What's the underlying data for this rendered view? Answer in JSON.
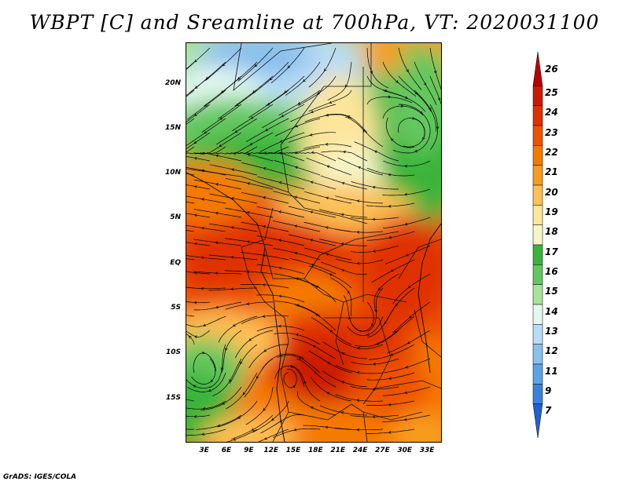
{
  "title": "WBPT [C] and Sreamline at 700hPa, VT: 2020031100",
  "footer": "GrADS: IGES/COLA",
  "map": {
    "lat_labels": [
      {
        "text": "20N",
        "lat": 20
      },
      {
        "text": "15N",
        "lat": 15
      },
      {
        "text": "10N",
        "lat": 10
      },
      {
        "text": "5N",
        "lat": 5
      },
      {
        "text": "EQ",
        "lat": 0
      },
      {
        "text": "5S",
        "lat": -5
      },
      {
        "text": "10S",
        "lat": -10
      },
      {
        "text": "15S",
        "lat": -15
      }
    ],
    "lon_labels": [
      {
        "text": "3E",
        "lon": 3
      },
      {
        "text": "6E",
        "lon": 6
      },
      {
        "text": "9E",
        "lon": 9
      },
      {
        "text": "12E",
        "lon": 12
      },
      {
        "text": "15E",
        "lon": 15
      },
      {
        "text": "18E",
        "lon": 18
      },
      {
        "text": "21E",
        "lon": 21
      },
      {
        "text": "24E",
        "lon": 24
      },
      {
        "text": "27E",
        "lon": 27
      },
      {
        "text": "30E",
        "lon": 30
      },
      {
        "text": "33E",
        "lon": 33
      }
    ],
    "lon_range": [
      0.5,
      35.0
    ],
    "lat_range": [
      -20.0,
      24.5
    ]
  },
  "colorbar": {
    "levels": [
      "26",
      "25",
      "24",
      "23",
      "22",
      "21",
      "20",
      "19",
      "18",
      "17",
      "16",
      "15",
      "14",
      "13",
      "12",
      "11",
      "9",
      "7"
    ],
    "colors": [
      "#b80000",
      "#cc1a00",
      "#e03000",
      "#ee5200",
      "#f57a00",
      "#f89c1f",
      "#fcc054",
      "#fde59a",
      "#f6f6c8",
      "#3bb33b",
      "#63c75f",
      "#a8e39c",
      "#e3f8f0",
      "#b9dcf6",
      "#8ac0ee",
      "#5ea3e8",
      "#3c82dc",
      "#2060d0"
    ]
  }
}
